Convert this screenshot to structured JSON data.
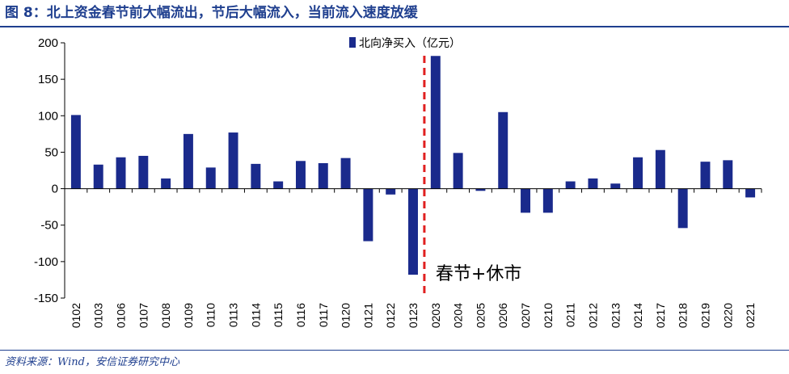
{
  "header": {
    "title": "图 8：北上资金春节前大幅流出，节后大幅流入，当前流入速度放缓"
  },
  "footer": {
    "source": "资料来源：Wind，安信证券研究中心"
  },
  "colors": {
    "bar": "#1a2a8c",
    "annotation_line": "#e02020",
    "title": "#1f3f8f"
  },
  "chart_data": {
    "type": "bar",
    "title": "",
    "xlabel": "",
    "ylabel": "",
    "ylim": [
      -150,
      200
    ],
    "yticks": [
      -150,
      -100,
      -50,
      0,
      50,
      100,
      150,
      200
    ],
    "categories": [
      "0102",
      "0103",
      "0106",
      "0107",
      "0108",
      "0109",
      "0110",
      "0113",
      "0114",
      "0115",
      "0116",
      "0117",
      "0120",
      "0121",
      "0122",
      "0123",
      "0203",
      "0204",
      "0205",
      "0206",
      "0207",
      "0210",
      "0211",
      "0212",
      "0213",
      "0214",
      "0217",
      "0218",
      "0219",
      "0220",
      "0221"
    ],
    "series": [
      {
        "name": "北向净买入（亿元）",
        "values": [
          101,
          33,
          43,
          45,
          14,
          75,
          29,
          77,
          34,
          10,
          38,
          35,
          42,
          -72,
          -8,
          -118,
          182,
          49,
          -3,
          105,
          -33,
          -33,
          10,
          14,
          7,
          43,
          53,
          -54,
          37,
          39,
          -12
        ]
      }
    ],
    "legend_position": "top-center",
    "annotation": {
      "text": "春节+休市",
      "between": [
        "0123",
        "0203"
      ]
    }
  }
}
